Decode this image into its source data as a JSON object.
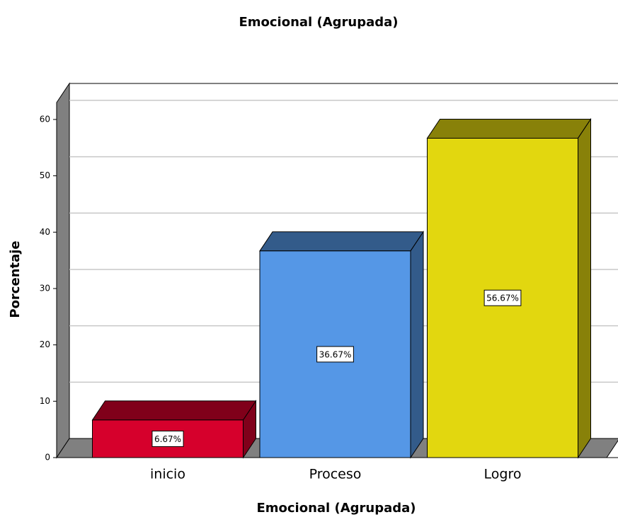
{
  "chart_data": {
    "type": "bar3d",
    "title": "Emocional  (Agrupada)",
    "x_label": "Emocional  (Agrupada)",
    "y_label": "Porcentaje",
    "categories": [
      "inicio",
      "Proceso",
      "Logro"
    ],
    "values": [
      6.67,
      36.67,
      56.67
    ],
    "value_labels": [
      "6.67%",
      "36.67%",
      "56.67%"
    ],
    "colors": [
      "#d6002c",
      "#5597e6",
      "#e2d70f"
    ],
    "ylim": [
      0,
      63
    ],
    "yticks": [
      0,
      10,
      20,
      30,
      40,
      50,
      60
    ],
    "grid": true
  }
}
